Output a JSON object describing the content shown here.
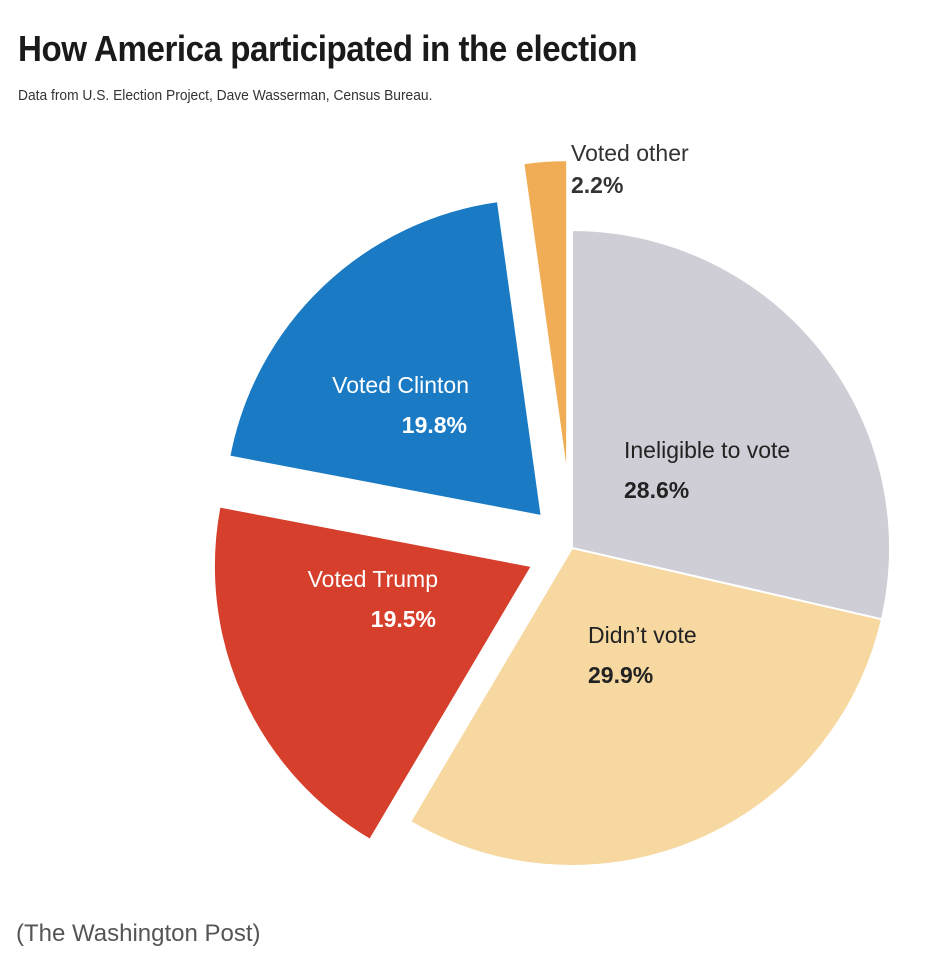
{
  "chart_data": {
    "type": "pie",
    "title": "How America participated in the election",
    "subtitle": "Data from U.S. Election Project, Dave Wasserman, Census Bureau.",
    "source": "(The Washington Post)",
    "unit": "%",
    "slices": [
      {
        "name": "Ineligible to vote",
        "value": 28.6,
        "value_label": "28.6%",
        "color": "#cfcdd6",
        "text_color": "#222222",
        "exploded": false
      },
      {
        "name": "Didn’t vote",
        "value": 29.9,
        "value_label": "29.9%",
        "color": "#f6d8a0",
        "text_color": "#222222",
        "exploded": false
      },
      {
        "name": "Voted Trump",
        "value": 19.5,
        "value_label": "19.5%",
        "color": "#d63f2c",
        "text_color": "#ffffff",
        "exploded": true
      },
      {
        "name": "Voted Clinton",
        "value": 19.8,
        "value_label": "19.8%",
        "color": "#1a7bc4",
        "text_color": "#ffffff",
        "exploded": true
      },
      {
        "name": "Voted other",
        "value": 2.2,
        "value_label": "2.2%",
        "color": "#f0ad55",
        "text_color": "#333333",
        "exploded": true
      }
    ],
    "start": "top",
    "direction": "clockwise"
  }
}
